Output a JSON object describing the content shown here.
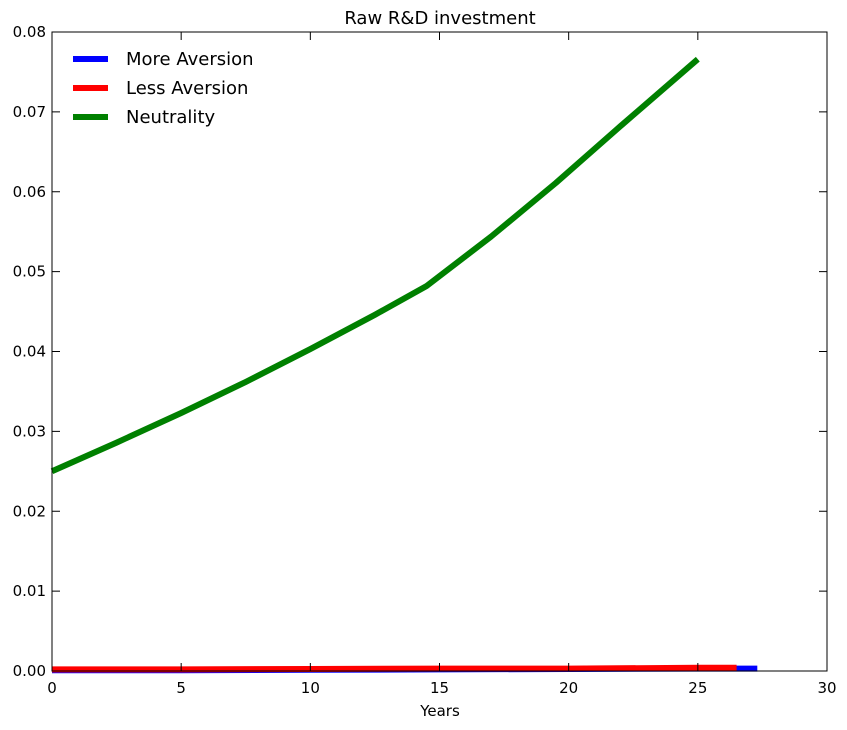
{
  "chart_data": {
    "type": "line",
    "title": "Raw R&D investment",
    "xlabel": "Years",
    "ylabel": "",
    "xlim": [
      0,
      30
    ],
    "ylim": [
      0,
      0.08
    ],
    "x_ticks": [
      "0",
      "5",
      "10",
      "15",
      "20",
      "25",
      "30"
    ],
    "y_ticks": [
      "0.00",
      "0.01",
      "0.02",
      "0.03",
      "0.04",
      "0.05",
      "0.06",
      "0.07",
      "0.08"
    ],
    "grid": false,
    "legend_position": "top-left",
    "series": [
      {
        "name": "More Aversion",
        "color": "#0000ff",
        "x": [
          0,
          5,
          10,
          15,
          20,
          25,
          27.3
        ],
        "y": [
          0.0001,
          0.0001,
          0.00015,
          0.0002,
          0.00025,
          0.0003,
          0.0003
        ]
      },
      {
        "name": "Less Aversion",
        "color": "#ff0000",
        "x": [
          0,
          5,
          10,
          15,
          20,
          25,
          26.5
        ],
        "y": [
          0.0002,
          0.0002,
          0.00025,
          0.0003,
          0.0003,
          0.0004,
          0.0004
        ]
      },
      {
        "name": "Neutrality",
        "color": "#008000",
        "x": [
          0,
          2.5,
          5,
          7.5,
          10,
          12.5,
          14.5,
          17,
          19.5,
          22,
          25
        ],
        "y": [
          0.025,
          0.0286,
          0.0323,
          0.0362,
          0.0403,
          0.0446,
          0.0482,
          0.0544,
          0.0611,
          0.0682,
          0.0766
        ]
      }
    ]
  }
}
